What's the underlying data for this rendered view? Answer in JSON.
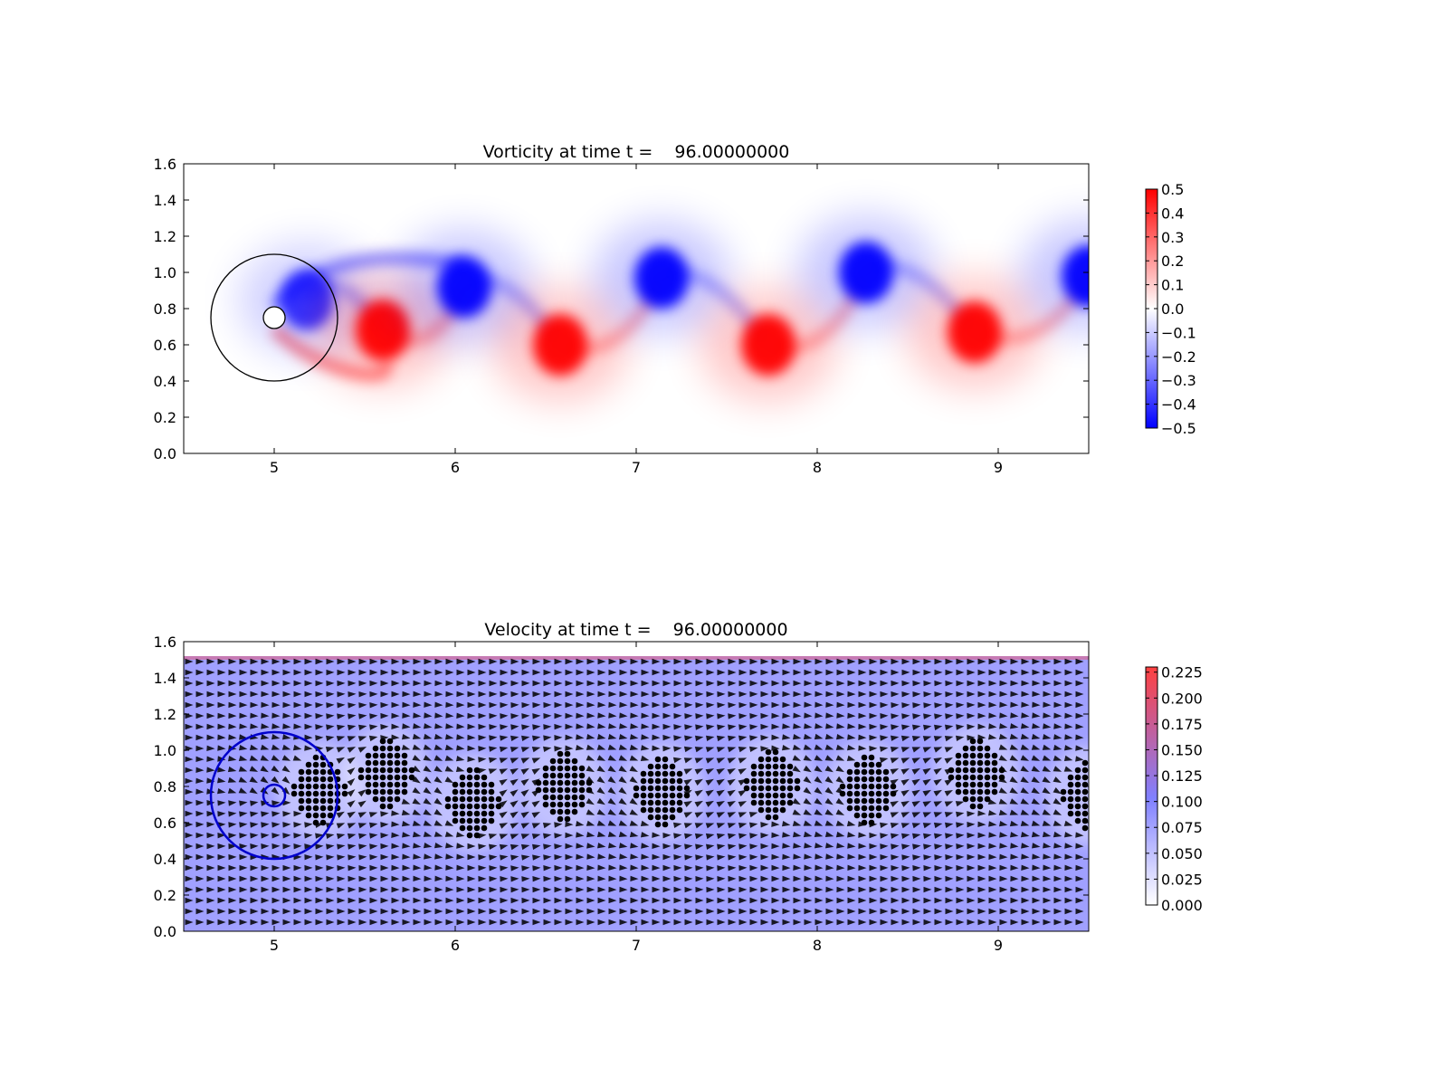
{
  "chart_data": [
    {
      "type": "heatmap",
      "title": "Vorticity at time t =    96.00000000",
      "xlabel": "",
      "ylabel": "",
      "xlim": [
        4.5,
        9.5
      ],
      "ylim": [
        0.0,
        1.6
      ],
      "x_ticks": [
        "5",
        "6",
        "7",
        "8",
        "9"
      ],
      "x_tick_values": [
        5,
        6,
        7,
        8,
        9
      ],
      "y_ticks": [
        "0.0",
        "0.2",
        "0.4",
        "0.6",
        "0.8",
        "1.0",
        "1.2",
        "1.4",
        "1.6"
      ],
      "y_tick_values": [
        0.0,
        0.2,
        0.4,
        0.6,
        0.8,
        1.0,
        1.2,
        1.4,
        1.6
      ],
      "colormap": "bwr",
      "colors": {
        "low": "#0000ff",
        "mid": "#ffffff",
        "high": "#ff0000"
      },
      "colorbar": {
        "vmin": -0.5,
        "vmax": 0.5,
        "ticks": [
          "0.5",
          "0.4",
          "0.3",
          "0.2",
          "0.1",
          "0.0",
          "−0.1",
          "−0.2",
          "−0.3",
          "−0.4",
          "−0.5"
        ],
        "tick_values": [
          0.5,
          0.4,
          0.3,
          0.2,
          0.1,
          0.0,
          -0.1,
          -0.2,
          -0.3,
          -0.4,
          -0.5
        ]
      },
      "cylinder": {
        "center": [
          5.0,
          0.75
        ],
        "radius": 0.06
      },
      "outer_circle": {
        "center": [
          5.0,
          0.75
        ],
        "radius": 0.35,
        "color": "#000000"
      },
      "vortices": [
        {
          "x": 5.18,
          "y": 0.85,
          "sign": -1,
          "strength": 0.8
        },
        {
          "x": 5.6,
          "y": 0.68,
          "sign": 1,
          "strength": 1.0
        },
        {
          "x": 6.05,
          "y": 0.92,
          "sign": -1,
          "strength": 1.0
        },
        {
          "x": 6.58,
          "y": 0.6,
          "sign": 1,
          "strength": 1.0
        },
        {
          "x": 7.14,
          "y": 0.97,
          "sign": -1,
          "strength": 1.0
        },
        {
          "x": 7.73,
          "y": 0.6,
          "sign": 1,
          "strength": 1.0
        },
        {
          "x": 8.27,
          "y": 1.0,
          "sign": -1,
          "strength": 1.0
        },
        {
          "x": 8.87,
          "y": 0.67,
          "sign": 1,
          "strength": 1.0
        },
        {
          "x": 9.5,
          "y": 0.98,
          "sign": -1,
          "strength": 1.0
        }
      ]
    },
    {
      "type": "heatmap",
      "title": "Velocity at time t =    96.00000000",
      "xlabel": "",
      "ylabel": "",
      "xlim": [
        4.5,
        9.5
      ],
      "ylim": [
        0.0,
        1.6
      ],
      "x_ticks": [
        "5",
        "6",
        "7",
        "8",
        "9"
      ],
      "x_tick_values": [
        5,
        6,
        7,
        8,
        9
      ],
      "y_ticks": [
        "0.0",
        "0.2",
        "0.4",
        "0.6",
        "0.8",
        "1.0",
        "1.2",
        "1.4",
        "1.6"
      ],
      "y_tick_values": [
        0.0,
        0.2,
        0.4,
        0.6,
        0.8,
        1.0,
        1.2,
        1.4,
        1.6
      ],
      "field_ymax": 1.52,
      "colors": {
        "low": "#ffffff",
        "mid": "#8080ff",
        "high": "#ff4040",
        "arrow": "#000000"
      },
      "colorbar": {
        "vmin": 0.0,
        "vmax": 0.23,
        "ticks": [
          "0.225",
          "0.200",
          "0.175",
          "0.150",
          "0.125",
          "0.100",
          "0.075",
          "0.050",
          "0.025",
          "0.000"
        ],
        "tick_values": [
          0.225,
          0.2,
          0.175,
          0.15,
          0.125,
          0.1,
          0.075,
          0.05,
          0.025,
          0.0
        ]
      },
      "cylinder": {
        "center": [
          5.0,
          0.75
        ],
        "radius": 0.06,
        "color": "#0000cc"
      },
      "outer_circle": {
        "center": [
          5.0,
          0.75
        ],
        "radius": 0.35,
        "color": "#0000cc"
      },
      "vortex_cores": [
        {
          "x": 5.25,
          "y": 0.78
        },
        {
          "x": 5.62,
          "y": 0.87
        },
        {
          "x": 6.1,
          "y": 0.71
        },
        {
          "x": 6.6,
          "y": 0.8
        },
        {
          "x": 7.14,
          "y": 0.77
        },
        {
          "x": 7.75,
          "y": 0.81
        },
        {
          "x": 8.28,
          "y": 0.78
        },
        {
          "x": 8.88,
          "y": 0.87
        },
        {
          "x": 9.5,
          "y": 0.75
        }
      ]
    }
  ]
}
